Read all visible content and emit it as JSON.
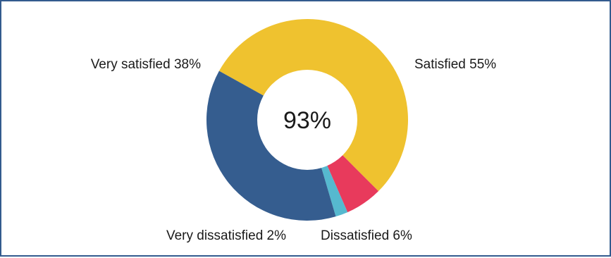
{
  "chart_data": {
    "type": "pie",
    "title": "",
    "center_label": "93%",
    "slices": [
      {
        "label": "Satisfied 55%",
        "value": 55,
        "color": "#efc22f"
      },
      {
        "label": "Dissatisfied 6%",
        "value": 6,
        "color": "#e83a5c"
      },
      {
        "label": "Very dissatisfied 2%",
        "value": 2,
        "color": "#56b9cf"
      },
      {
        "label": "Very satisfied 38%",
        "value": 38,
        "color": "#355d8f"
      }
    ],
    "border_color": "#335b8e"
  }
}
